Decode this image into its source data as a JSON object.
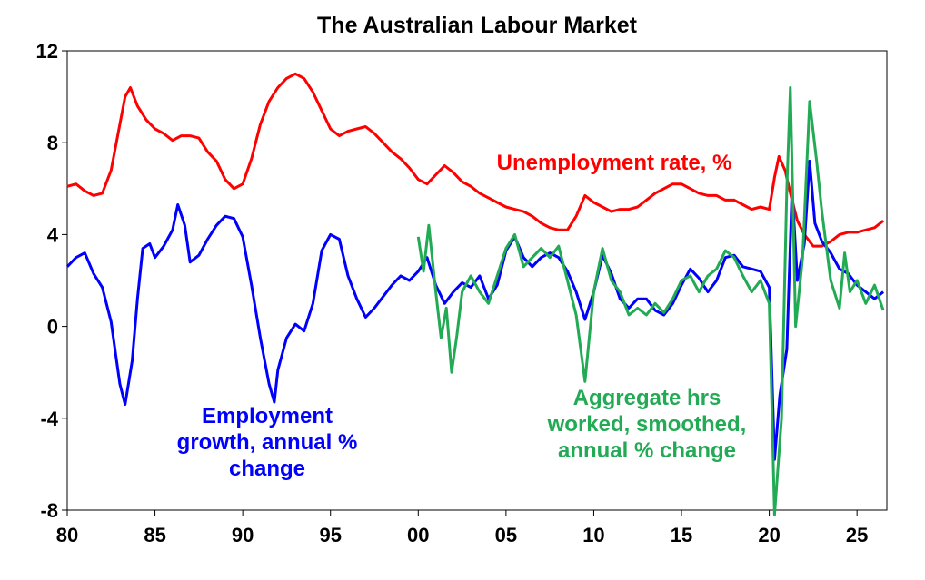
{
  "chart_data": {
    "type": "line",
    "title": "The Australian Labour Market",
    "xlabel": "",
    "ylabel": "",
    "xlim": [
      1980,
      2026.7
    ],
    "ylim": [
      -8,
      12
    ],
    "x_ticks": [
      {
        "value": 1980,
        "label": "80"
      },
      {
        "value": 1985,
        "label": "85"
      },
      {
        "value": 1990,
        "label": "90"
      },
      {
        "value": 1995,
        "label": "95"
      },
      {
        "value": 2000,
        "label": "00"
      },
      {
        "value": 2005,
        "label": "05"
      },
      {
        "value": 2010,
        "label": "10"
      },
      {
        "value": 2015,
        "label": "15"
      },
      {
        "value": 2020,
        "label": "20"
      },
      {
        "value": 2025,
        "label": "25"
      }
    ],
    "y_ticks": [
      {
        "value": 12,
        "label": "12"
      },
      {
        "value": 8,
        "label": "8"
      },
      {
        "value": 4,
        "label": "4"
      },
      {
        "value": 0,
        "label": "0"
      },
      {
        "value": -4,
        "label": "-4"
      },
      {
        "value": -8,
        "label": "-8"
      }
    ],
    "grid": false,
    "legend": "none",
    "annotations": [
      {
        "series": "unemployment",
        "lines": [
          "Unemployment rate, %"
        ]
      },
      {
        "series": "employment",
        "lines": [
          "Employment",
          "growth, annual %",
          "change"
        ]
      },
      {
        "series": "hours",
        "lines": [
          "Aggregate hrs",
          "worked, smoothed,",
          "annual % change"
        ]
      }
    ],
    "series": [
      {
        "id": "unemployment",
        "color": "#ff0000",
        "points": [
          [
            1980.0,
            6.1
          ],
          [
            1980.5,
            6.2
          ],
          [
            1981.0,
            5.9
          ],
          [
            1981.5,
            5.7
          ],
          [
            1982.0,
            5.8
          ],
          [
            1982.5,
            6.8
          ],
          [
            1983.0,
            8.8
          ],
          [
            1983.3,
            10.0
          ],
          [
            1983.6,
            10.4
          ],
          [
            1984.0,
            9.6
          ],
          [
            1984.5,
            9.0
          ],
          [
            1985.0,
            8.6
          ],
          [
            1985.5,
            8.4
          ],
          [
            1986.0,
            8.1
          ],
          [
            1986.5,
            8.3
          ],
          [
            1987.0,
            8.3
          ],
          [
            1987.5,
            8.2
          ],
          [
            1988.0,
            7.6
          ],
          [
            1988.5,
            7.2
          ],
          [
            1989.0,
            6.4
          ],
          [
            1989.5,
            6.0
          ],
          [
            1990.0,
            6.2
          ],
          [
            1990.5,
            7.3
          ],
          [
            1991.0,
            8.8
          ],
          [
            1991.5,
            9.8
          ],
          [
            1992.0,
            10.4
          ],
          [
            1992.5,
            10.8
          ],
          [
            1993.0,
            11.0
          ],
          [
            1993.5,
            10.8
          ],
          [
            1994.0,
            10.2
          ],
          [
            1994.5,
            9.4
          ],
          [
            1995.0,
            8.6
          ],
          [
            1995.5,
            8.3
          ],
          [
            1996.0,
            8.5
          ],
          [
            1996.5,
            8.6
          ],
          [
            1997.0,
            8.7
          ],
          [
            1997.5,
            8.4
          ],
          [
            1998.0,
            8.0
          ],
          [
            1998.5,
            7.6
          ],
          [
            1999.0,
            7.3
          ],
          [
            1999.5,
            6.9
          ],
          [
            2000.0,
            6.4
          ],
          [
            2000.5,
            6.2
          ],
          [
            2001.0,
            6.6
          ],
          [
            2001.5,
            7.0
          ],
          [
            2002.0,
            6.7
          ],
          [
            2002.5,
            6.3
          ],
          [
            2003.0,
            6.1
          ],
          [
            2003.5,
            5.8
          ],
          [
            2004.0,
            5.6
          ],
          [
            2004.5,
            5.4
          ],
          [
            2005.0,
            5.2
          ],
          [
            2005.5,
            5.1
          ],
          [
            2006.0,
            5.0
          ],
          [
            2006.5,
            4.8
          ],
          [
            2007.0,
            4.5
          ],
          [
            2007.5,
            4.3
          ],
          [
            2008.0,
            4.2
          ],
          [
            2008.5,
            4.2
          ],
          [
            2009.0,
            4.8
          ],
          [
            2009.5,
            5.7
          ],
          [
            2010.0,
            5.4
          ],
          [
            2010.5,
            5.2
          ],
          [
            2011.0,
            5.0
          ],
          [
            2011.5,
            5.1
          ],
          [
            2012.0,
            5.1
          ],
          [
            2012.5,
            5.2
          ],
          [
            2013.0,
            5.5
          ],
          [
            2013.5,
            5.8
          ],
          [
            2014.0,
            6.0
          ],
          [
            2014.5,
            6.2
          ],
          [
            2015.0,
            6.2
          ],
          [
            2015.5,
            6.0
          ],
          [
            2016.0,
            5.8
          ],
          [
            2016.5,
            5.7
          ],
          [
            2017.0,
            5.7
          ],
          [
            2017.5,
            5.5
          ],
          [
            2018.0,
            5.5
          ],
          [
            2018.5,
            5.3
          ],
          [
            2019.0,
            5.1
          ],
          [
            2019.5,
            5.2
          ],
          [
            2020.0,
            5.1
          ],
          [
            2020.3,
            6.5
          ],
          [
            2020.55,
            7.4
          ],
          [
            2020.9,
            6.8
          ],
          [
            2021.2,
            5.8
          ],
          [
            2021.6,
            4.6
          ],
          [
            2022.0,
            4.0
          ],
          [
            2022.5,
            3.5
          ],
          [
            2023.0,
            3.5
          ],
          [
            2023.5,
            3.7
          ],
          [
            2024.0,
            4.0
          ],
          [
            2024.5,
            4.1
          ],
          [
            2025.0,
            4.1
          ],
          [
            2025.5,
            4.2
          ],
          [
            2026.0,
            4.3
          ],
          [
            2026.5,
            4.6
          ]
        ]
      },
      {
        "id": "employment",
        "color": "#0000ff",
        "points": [
          [
            1980.0,
            2.6
          ],
          [
            1980.5,
            3.0
          ],
          [
            1981.0,
            3.2
          ],
          [
            1981.5,
            2.3
          ],
          [
            1982.0,
            1.7
          ],
          [
            1982.5,
            0.2
          ],
          [
            1983.0,
            -2.5
          ],
          [
            1983.3,
            -3.4
          ],
          [
            1983.7,
            -1.5
          ],
          [
            1984.0,
            1.2
          ],
          [
            1984.3,
            3.4
          ],
          [
            1984.7,
            3.6
          ],
          [
            1985.0,
            3.0
          ],
          [
            1985.5,
            3.5
          ],
          [
            1986.0,
            4.2
          ],
          [
            1986.3,
            5.3
          ],
          [
            1986.7,
            4.4
          ],
          [
            1987.0,
            2.8
          ],
          [
            1987.5,
            3.1
          ],
          [
            1988.0,
            3.8
          ],
          [
            1988.5,
            4.4
          ],
          [
            1989.0,
            4.8
          ],
          [
            1989.5,
            4.7
          ],
          [
            1990.0,
            3.9
          ],
          [
            1990.5,
            1.8
          ],
          [
            1991.0,
            -0.5
          ],
          [
            1991.5,
            -2.5
          ],
          [
            1991.8,
            -3.3
          ],
          [
            1992.0,
            -1.9
          ],
          [
            1992.5,
            -0.5
          ],
          [
            1993.0,
            0.1
          ],
          [
            1993.5,
            -0.2
          ],
          [
            1994.0,
            1.0
          ],
          [
            1994.5,
            3.3
          ],
          [
            1995.0,
            4.0
          ],
          [
            1995.5,
            3.8
          ],
          [
            1996.0,
            2.2
          ],
          [
            1996.5,
            1.2
          ],
          [
            1997.0,
            0.4
          ],
          [
            1997.5,
            0.8
          ],
          [
            1998.0,
            1.3
          ],
          [
            1998.5,
            1.8
          ],
          [
            1999.0,
            2.2
          ],
          [
            1999.5,
            2.0
          ],
          [
            2000.0,
            2.4
          ],
          [
            2000.5,
            3.0
          ],
          [
            2001.0,
            1.8
          ],
          [
            2001.5,
            1.0
          ],
          [
            2002.0,
            1.5
          ],
          [
            2002.5,
            1.9
          ],
          [
            2003.0,
            1.7
          ],
          [
            2003.5,
            2.2
          ],
          [
            2004.0,
            1.2
          ],
          [
            2004.5,
            1.8
          ],
          [
            2005.0,
            3.3
          ],
          [
            2005.5,
            3.9
          ],
          [
            2006.0,
            3.0
          ],
          [
            2006.5,
            2.6
          ],
          [
            2007.0,
            3.0
          ],
          [
            2007.5,
            3.2
          ],
          [
            2008.0,
            3.0
          ],
          [
            2008.5,
            2.4
          ],
          [
            2009.0,
            1.5
          ],
          [
            2009.5,
            0.3
          ],
          [
            2010.0,
            1.5
          ],
          [
            2010.5,
            3.1
          ],
          [
            2011.0,
            2.3
          ],
          [
            2011.5,
            1.2
          ],
          [
            2012.0,
            0.8
          ],
          [
            2012.5,
            1.2
          ],
          [
            2013.0,
            1.2
          ],
          [
            2013.5,
            0.7
          ],
          [
            2014.0,
            0.5
          ],
          [
            2014.5,
            1.0
          ],
          [
            2015.0,
            1.8
          ],
          [
            2015.5,
            2.5
          ],
          [
            2016.0,
            2.1
          ],
          [
            2016.5,
            1.5
          ],
          [
            2017.0,
            2.0
          ],
          [
            2017.5,
            3.0
          ],
          [
            2018.0,
            3.1
          ],
          [
            2018.5,
            2.6
          ],
          [
            2019.0,
            2.5
          ],
          [
            2019.5,
            2.4
          ],
          [
            2020.0,
            1.7
          ],
          [
            2020.3,
            -5.8
          ],
          [
            2020.6,
            -3.0
          ],
          [
            2021.0,
            -1.0
          ],
          [
            2021.3,
            6.0
          ],
          [
            2021.6,
            2.0
          ],
          [
            2022.0,
            3.6
          ],
          [
            2022.3,
            7.2
          ],
          [
            2022.6,
            4.5
          ],
          [
            2023.0,
            3.7
          ],
          [
            2023.5,
            3.2
          ],
          [
            2024.0,
            2.5
          ],
          [
            2024.5,
            2.3
          ],
          [
            2025.0,
            1.8
          ],
          [
            2025.5,
            1.5
          ],
          [
            2026.0,
            1.2
          ],
          [
            2026.5,
            1.5
          ]
        ]
      },
      {
        "id": "hours",
        "color": "#22aa55",
        "points": [
          [
            2000.0,
            3.9
          ],
          [
            2000.3,
            2.4
          ],
          [
            2000.6,
            4.4
          ],
          [
            2001.0,
            1.5
          ],
          [
            2001.3,
            -0.5
          ],
          [
            2001.6,
            0.8
          ],
          [
            2001.9,
            -2.0
          ],
          [
            2002.2,
            -0.4
          ],
          [
            2002.5,
            1.5
          ],
          [
            2003.0,
            2.2
          ],
          [
            2003.5,
            1.5
          ],
          [
            2004.0,
            1.0
          ],
          [
            2004.5,
            2.2
          ],
          [
            2005.0,
            3.4
          ],
          [
            2005.5,
            4.0
          ],
          [
            2006.0,
            2.6
          ],
          [
            2006.5,
            3.0
          ],
          [
            2007.0,
            3.4
          ],
          [
            2007.5,
            3.0
          ],
          [
            2008.0,
            3.5
          ],
          [
            2008.5,
            2.0
          ],
          [
            2009.0,
            0.5
          ],
          [
            2009.5,
            -2.4
          ],
          [
            2010.0,
            1.5
          ],
          [
            2010.5,
            3.4
          ],
          [
            2011.0,
            2.0
          ],
          [
            2011.5,
            1.5
          ],
          [
            2012.0,
            0.5
          ],
          [
            2012.5,
            0.8
          ],
          [
            2013.0,
            0.5
          ],
          [
            2013.5,
            1.0
          ],
          [
            2014.0,
            0.6
          ],
          [
            2014.5,
            1.2
          ],
          [
            2015.0,
            2.0
          ],
          [
            2015.5,
            2.2
          ],
          [
            2016.0,
            1.5
          ],
          [
            2016.5,
            2.2
          ],
          [
            2017.0,
            2.5
          ],
          [
            2017.5,
            3.3
          ],
          [
            2018.0,
            3.0
          ],
          [
            2018.5,
            2.2
          ],
          [
            2019.0,
            1.5
          ],
          [
            2019.5,
            2.0
          ],
          [
            2020.0,
            1.0
          ],
          [
            2020.3,
            -8.2
          ],
          [
            2020.7,
            -4.0
          ],
          [
            2021.0,
            6.0
          ],
          [
            2021.2,
            10.4
          ],
          [
            2021.5,
            0.0
          ],
          [
            2021.9,
            3.0
          ],
          [
            2022.3,
            9.8
          ],
          [
            2022.7,
            7.2
          ],
          [
            2023.0,
            5.0
          ],
          [
            2023.5,
            2.0
          ],
          [
            2024.0,
            0.8
          ],
          [
            2024.3,
            3.2
          ],
          [
            2024.6,
            1.5
          ],
          [
            2025.0,
            2.0
          ],
          [
            2025.5,
            1.0
          ],
          [
            2026.0,
            1.8
          ],
          [
            2026.5,
            0.7
          ]
        ]
      }
    ]
  }
}
